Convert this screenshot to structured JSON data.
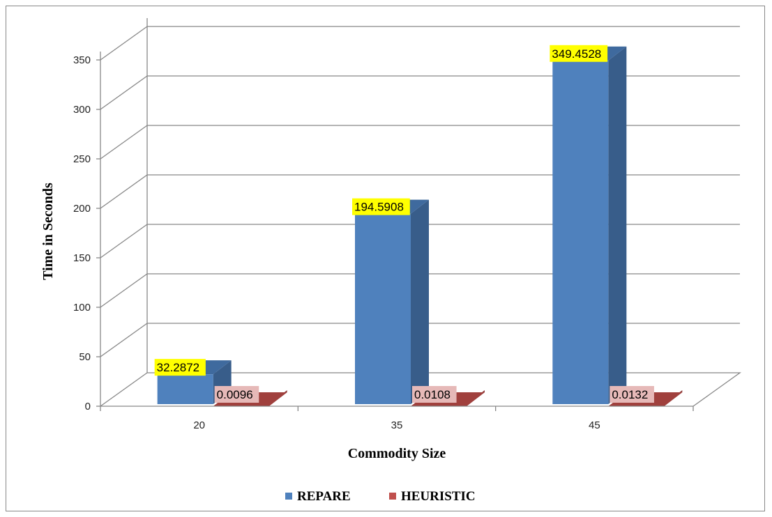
{
  "chart_data": {
    "type": "bar",
    "title": "",
    "xlabel": "Commodity Size",
    "ylabel": "Time in Seconds",
    "categories": [
      "20",
      "35",
      "45"
    ],
    "series": [
      {
        "name": "REPARE",
        "values": [
          32.2872,
          194.5908,
          349.4528
        ],
        "labels": [
          "32.2872",
          "194.5908",
          "349.4528"
        ],
        "color": "#4F81BD",
        "side_color": "#385D8A",
        "top_color": "#3F6A9E",
        "label_bg": "#FFFF00"
      },
      {
        "name": "HEURISTIC",
        "values": [
          0.0096,
          0.0108,
          0.0132
        ],
        "labels": [
          "0.0096",
          "0.0108",
          "0.0132"
        ],
        "color": "#C0504D",
        "side_color": "#8C3836",
        "top_color": "#A0403D",
        "label_bg": "#E6B9B8"
      }
    ],
    "yticks": [
      0,
      50,
      100,
      150,
      200,
      250,
      300,
      350
    ],
    "ylim": [
      0,
      350
    ],
    "grid": true,
    "legend": "bottom",
    "style": "3d-clustered-column"
  }
}
